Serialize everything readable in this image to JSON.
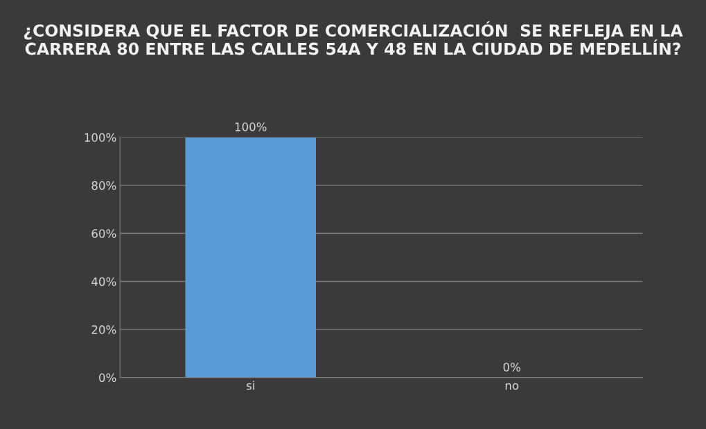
{
  "chart_data": {
    "type": "bar",
    "title": "¿CONSIDERA QUE EL FACTOR DE COMERCIALIZACIÓN  SE REFLEJA EN LA CARRERA 80 ENTRE LAS CALLES 54A Y 48 EN LA CIUDAD DE MEDELLÍN?",
    "categories": [
      "si",
      "no"
    ],
    "values": [
      100,
      0
    ],
    "color": "#5b9bd5",
    "value_labels": [
      "100%",
      "0%"
    ],
    "ylim": [
      0,
      100
    ],
    "yticks": [
      {
        "value": 0,
        "label": "0%"
      },
      {
        "value": 20,
        "label": "20%"
      },
      {
        "value": 40,
        "label": "40%"
      },
      {
        "value": 60,
        "label": "60%"
      },
      {
        "value": 80,
        "label": "80%"
      },
      {
        "value": 100,
        "label": "100%"
      }
    ],
    "grid": "y"
  }
}
